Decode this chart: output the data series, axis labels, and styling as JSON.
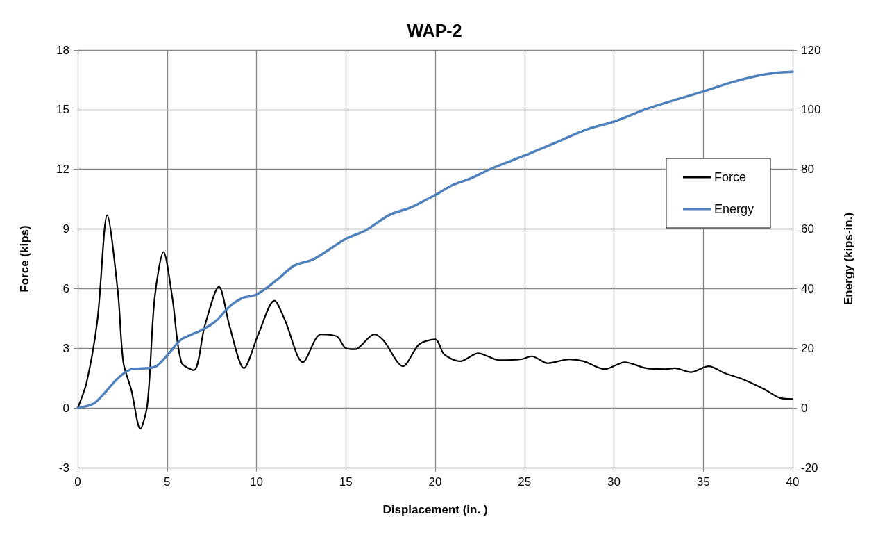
{
  "chart_data": {
    "type": "line",
    "title": "WAP-2",
    "xlabel": "Displacement (in. )",
    "ylabel": "Force (kips)",
    "y2label": "Energy (kips-in.)",
    "xlim": [
      0,
      40
    ],
    "xticks": [
      0,
      5,
      10,
      15,
      20,
      25,
      30,
      35,
      40
    ],
    "ylim": [
      -3,
      18
    ],
    "yticks": [
      -3,
      0,
      3,
      6,
      9,
      12,
      15,
      18
    ],
    "y2lim": [
      -20,
      120
    ],
    "y2ticks": [
      -20,
      0,
      20,
      40,
      60,
      80,
      100,
      120
    ],
    "grid": true,
    "legend": "right",
    "marker": "none",
    "series": [
      {
        "name": "Force",
        "color": "#000000",
        "x": [
          0,
          0.5,
          1.1,
          1.65,
          2.25,
          2.55,
          3.0,
          3.5,
          3.9,
          4.3,
          4.8,
          5.3,
          5.8,
          6.5,
          7.1,
          7.9,
          8.5,
          9.3,
          10.1,
          11.0,
          11.6,
          12.6,
          13.6,
          14.5,
          15.0,
          15.5,
          16.6,
          17.1,
          18.2,
          19.1,
          20.0,
          20.5,
          21.4,
          22.4,
          23.6,
          24.8,
          25.4,
          26.3,
          27.5,
          28.3,
          29.5,
          30.6,
          31.8,
          32.9,
          33.4,
          34.3,
          35.3,
          36.2,
          37.2,
          38.4,
          39.3,
          40.0
        ],
        "values": [
          0,
          1.3,
          4.4,
          9.7,
          5.8,
          2.3,
          0.9,
          -1.05,
          0.2,
          5.5,
          7.85,
          5.5,
          2.3,
          1.9,
          4.1,
          6.1,
          4.1,
          2.0,
          3.7,
          5.4,
          4.4,
          2.3,
          3.7,
          3.6,
          3.0,
          2.95,
          3.7,
          3.4,
          2.1,
          3.2,
          3.45,
          2.7,
          2.35,
          2.75,
          2.4,
          2.45,
          2.6,
          2.25,
          2.45,
          2.35,
          1.95,
          2.3,
          2.0,
          1.95,
          2.0,
          1.8,
          2.1,
          1.75,
          1.45,
          0.95,
          0.5,
          0.45
        ]
      },
      {
        "name": "Energy",
        "color": "#4f81bd",
        "axis": "y2",
        "x": [
          0,
          0.9,
          1.5,
          2.25,
          3.0,
          3.8,
          4.4,
          5.2,
          5.8,
          6.9,
          7.7,
          8.5,
          9.2,
          10.0,
          11.2,
          12.1,
          13.2,
          15.0,
          16.1,
          17.4,
          18.7,
          20.0,
          21.0,
          22.0,
          23.2,
          25.0,
          26.8,
          28.5,
          30.0,
          31.9,
          35.0,
          36.6,
          37.9,
          39.0,
          40.0
        ],
        "values": [
          0,
          1.5,
          5,
          10,
          13,
          13.3,
          14,
          19,
          23,
          26,
          29,
          34,
          36.8,
          38,
          43.2,
          47.7,
          49.9,
          56.7,
          59.5,
          64.6,
          67.4,
          71.4,
          74.8,
          77.0,
          80.4,
          84.6,
          89.1,
          93.4,
          96.0,
          100.4,
          106.1,
          109.2,
          111.2,
          112.3,
          112.7
        ]
      }
    ]
  }
}
